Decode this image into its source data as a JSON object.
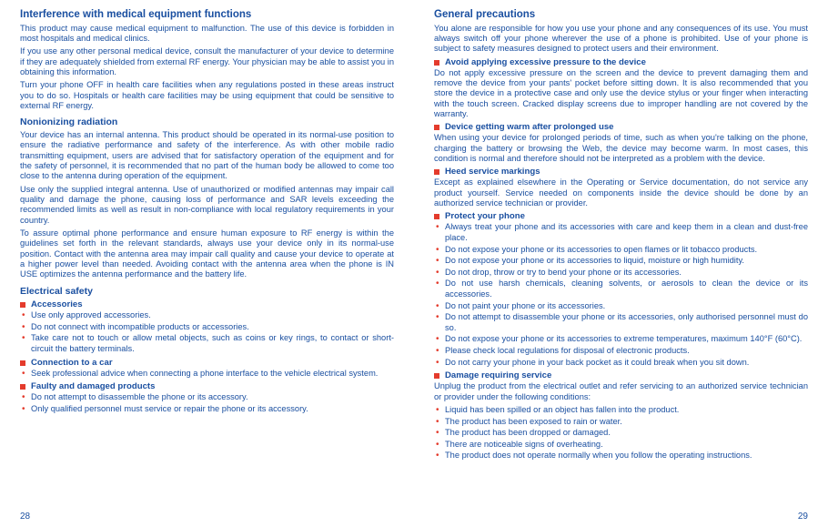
{
  "left": {
    "pagenum": "28",
    "s1_title": "Interference with medical equipment functions",
    "s1_p1": "This product may cause medical equipment to malfunction. The use of this device is forbidden in most hospitals and medical clinics.",
    "s1_p2": "If you use any other personal medical device, consult the manufacturer of your device to determine if they are adequately shielded from external RF energy. Your physician may be able to assist you in obtaining this information.",
    "s1_p3": "Turn your phone OFF in health care facilities when any regulations posted in these areas instruct you to do so. Hospitals or health care facilities may be using equipment that could be sensitive to external RF energy.",
    "s2_title": "Nonionizing radiation",
    "s2_p1": "Your device has an internal antenna. This product should be operated in its normal-use position to ensure the radiative performance and safety of the interference. As with other mobile radio transmitting equipment, users are advised that for satisfactory operation of the equipment and for the safety of personnel, it is recommended that no part of the human body be allowed to come too close to the antenna during operation of the equipment.",
    "s2_p2": "Use only the supplied integral antenna. Use of unauthorized or modified antennas may impair call quality and damage the phone, causing loss of performance and SAR levels exceeding the recommended limits as well as result in non-compliance with local regulatory requirements in your country.",
    "s2_p3": "To assure optimal phone performance and ensure human exposure to RF energy is within the guidelines set forth in the relevant standards, always use your device only in its normal-use position. Contact with the antenna area may impair call quality and cause your device to operate at a higher power level than needed. Avoiding contact with the antenna area when the phone is IN USE optimizes the antenna performance and the battery life.",
    "s3_title": "Electrical safety",
    "s3_sub1": "Accessories",
    "s3_sub1_li1": "Use only approved accessories.",
    "s3_sub1_li2": "Do not connect with incompatible products or accessories.",
    "s3_sub1_li3": "Take care not to touch or allow metal objects, such as coins or key rings, to contact or short-circuit the battery terminals.",
    "s3_sub2": "Connection to a car",
    "s3_sub2_li1": "Seek professional advice when connecting a phone interface to the vehicle electrical system.",
    "s3_sub3": "Faulty and damaged products",
    "s3_sub3_li1": "Do not attempt to disassemble the phone or its accessory.",
    "s3_sub3_li2": "Only qualified personnel must service or repair the phone or its accessory."
  },
  "right": {
    "pagenum": "29",
    "s1_title": "General precautions",
    "s1_p1": "You alone are responsible for how you use your phone and any consequences of its use. You must always switch off your phone wherever the use of a phone is prohibited. Use of your phone is subject to safety measures designed to protect users and their environment.",
    "sub1": "Avoid applying excessive pressure to the device",
    "sub1_p1": "Do not apply excessive pressure on the screen and the device to prevent damaging them and remove the device from your pants' pocket before sitting down. It is also recommended that you store the device in a protective case and only use the device stylus or your finger when interacting with the touch screen. Cracked display screens due to improper handling are not covered by the warranty.",
    "sub2": "Device getting warm after prolonged use",
    "sub2_p1": "When using your device for prolonged periods of time, such as when you're talking on the phone, charging the battery or browsing the Web, the device may become warm. In most cases, this condition is normal and therefore should not be interpreted as a problem with the device.",
    "sub3": "Heed service markings",
    "sub3_p1": "Except as explained elsewhere in the Operating or Service documentation, do not service any product yourself. Service needed on components inside the device should be done by an authorized service technician or provider.",
    "sub4": "Protect your phone",
    "sub4_li1": "Always treat your phone and its accessories with care and keep them in a clean and dust-free place.",
    "sub4_li2": "Do not expose your phone or its accessories to open flames or lit tobacco products.",
    "sub4_li3": "Do not expose your phone or its accessories to liquid, moisture or high humidity.",
    "sub4_li4": "Do not drop, throw or try to bend your phone or its accessories.",
    "sub4_li5": "Do not use harsh chemicals, cleaning solvents, or aerosols to clean the device or its accessories.",
    "sub4_li6": "Do not paint your phone or its accessories.",
    "sub4_li7": "Do not attempt to disassemble your phone or its accessories, only authorised personnel must do so.",
    "sub4_li8": "Do not expose your phone or its accessories to extreme temperatures, maximum 140°F (60°C).",
    "sub4_li9": "Please check local regulations for disposal of electronic products.",
    "sub4_li10": "Do not carry your phone in your back pocket as it could break when you sit down.",
    "sub5": "Damage requiring service",
    "sub5_p1": "Unplug the product from the electrical outlet and refer servicing to an authorized service technician or provider under the following conditions:",
    "sub5_li1": "Liquid has been spilled or an object has fallen into the product.",
    "sub5_li2": "The product has been exposed to rain or water.",
    "sub5_li3": "The product has been dropped or damaged.",
    "sub5_li4": "There are noticeable signs of overheating.",
    "sub5_li5": "The product does not operate normally when you follow the operating instructions."
  }
}
